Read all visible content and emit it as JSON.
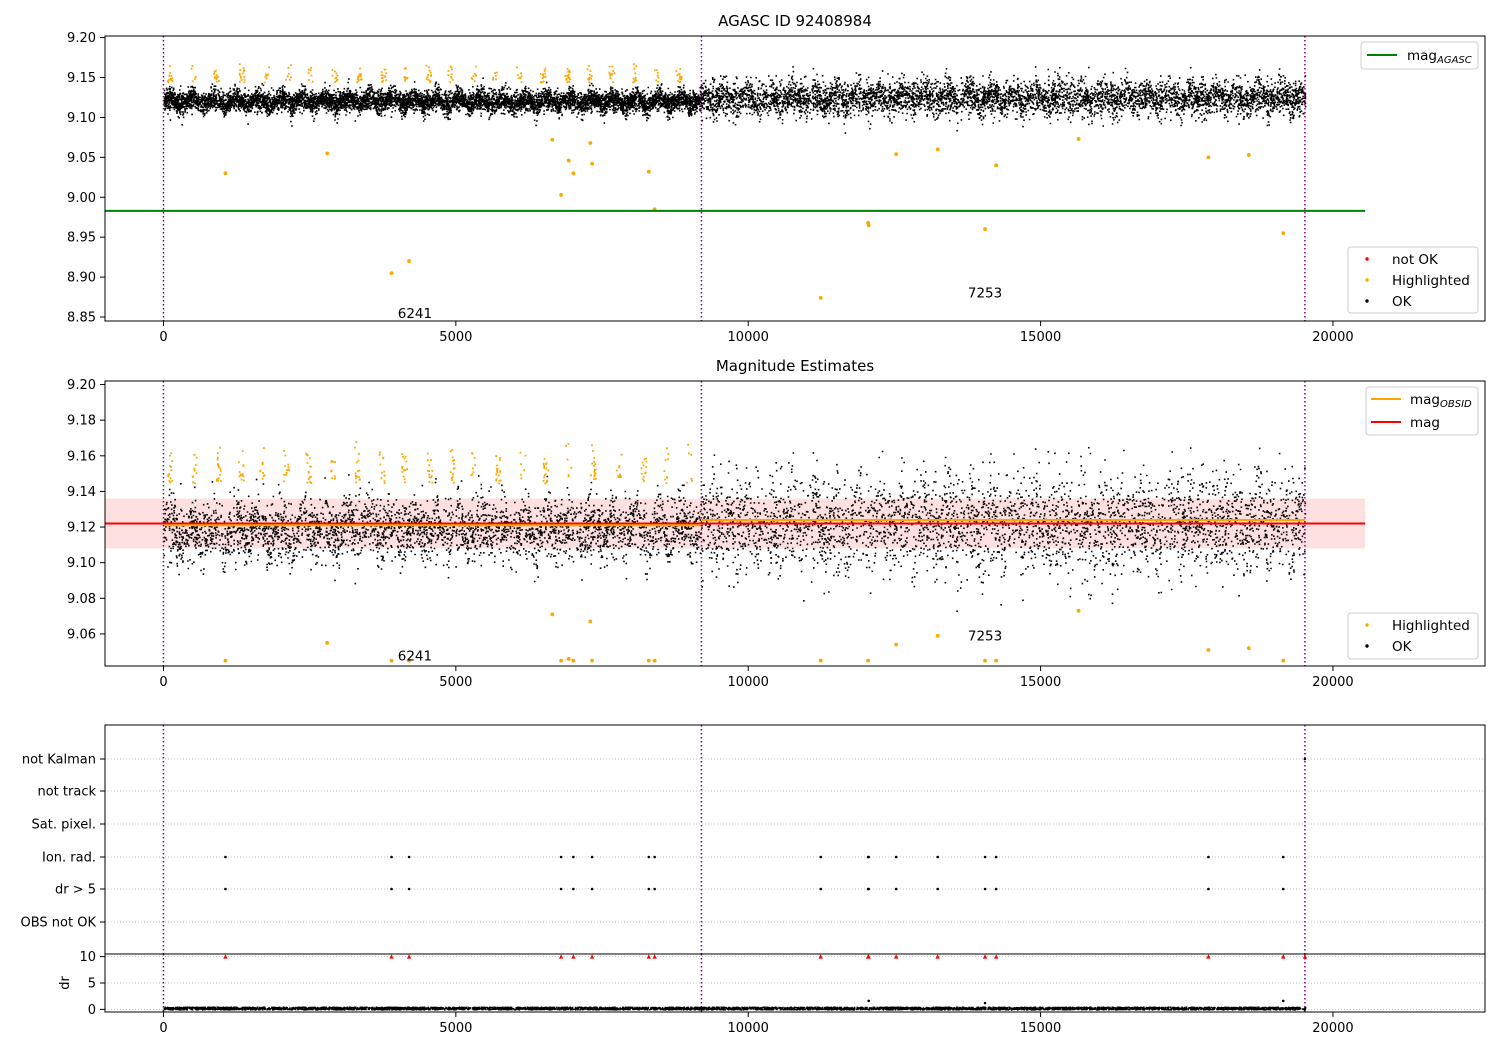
{
  "chart_data": [
    {
      "type": "scatter",
      "title": "AGASC ID 92408984",
      "xlabel": "",
      "ylabel": "",
      "xlim": [
        -1000,
        22600
      ],
      "ylim": [
        8.845,
        9.202
      ],
      "xticks": [
        0,
        5000,
        10000,
        15000,
        20000
      ],
      "xtick_labels": [
        "0",
        "5000",
        "10000",
        "15000",
        "20000"
      ],
      "yticks": [
        8.85,
        8.9,
        8.95,
        9.0,
        9.05,
        9.1,
        9.15,
        9.2
      ],
      "ytick_labels": [
        "8.85",
        "8.90",
        "8.95",
        "9.00",
        "9.05",
        "9.10",
        "9.15",
        "9.20"
      ],
      "obs_boundaries": [
        0,
        9200,
        19520
      ],
      "obs_annotations": [
        {
          "text": "6241",
          "x": 4300,
          "y": 8.855
        },
        {
          "text": "7253",
          "x": 14050,
          "y": 8.881
        }
      ],
      "lines": [
        {
          "name": "mag_AGASC",
          "label_main": "mag",
          "label_sub": "AGASC",
          "y": 8.983,
          "x": [
            -1000,
            20550
          ],
          "color": "#008000"
        }
      ],
      "series": [
        {
          "name": "not OK",
          "color": "#ff0000",
          "points": []
        },
        {
          "name": "Highlighted",
          "color": "#ffa500",
          "points": [
            [
              1060,
              9.03
            ],
            [
              2800,
              9.055
            ],
            [
              3900,
              8.905
            ],
            [
              4200,
              8.92
            ],
            [
              6650,
              9.072
            ],
            [
              6800,
              9.003
            ],
            [
              6930,
              9.046
            ],
            [
              7010,
              9.03
            ],
            [
              7300,
              9.068
            ],
            [
              7330,
              9.042
            ],
            [
              8300,
              9.032
            ],
            [
              8400,
              8.985
            ],
            [
              12050,
              8.968
            ],
            [
              12060,
              8.965
            ],
            [
              12530,
              9.054
            ],
            [
              13240,
              9.06
            ],
            [
              14050,
              8.96
            ],
            [
              14240,
              9.04
            ],
            [
              15650,
              9.073
            ],
            [
              11240,
              8.874
            ],
            [
              17870,
              9.05
            ],
            [
              18560,
              9.053
            ],
            [
              19150,
              8.955
            ]
          ]
        },
        {
          "name": "OK",
          "color": "#000000",
          "points": []
        }
      ],
      "ok_band": [
        {
          "x_start": 0,
          "x_end": 9200,
          "center": 9.121,
          "half_width": 0.011,
          "max_spike": 9.152
        },
        {
          "x_start": 9200,
          "x_end": 19520,
          "center": 9.125,
          "half_width": 0.018,
          "max_spike": 9.165
        }
      ],
      "highlight_spikes": {
        "y_min": 9.145,
        "y_max": 9.17
      },
      "legends": [
        {
          "position": "upper-right",
          "entries": [
            {
              "name": "mag",
              "sub": "AGASC",
              "kind": "line",
              "color": "#008000"
            }
          ]
        },
        {
          "position": "lower-right",
          "entries": [
            {
              "name": "not OK",
              "kind": "dot",
              "color": "#ff0000"
            },
            {
              "name": "Highlighted",
              "kind": "dot",
              "color": "#ffa500"
            },
            {
              "name": "OK",
              "kind": "dot",
              "color": "#000000"
            }
          ]
        }
      ]
    },
    {
      "type": "scatter",
      "title": "Magnitude Estimates",
      "xlabel": "",
      "ylabel": "",
      "xlim": [
        -1000,
        22600
      ],
      "ylim": [
        9.042,
        9.202
      ],
      "xticks": [
        0,
        5000,
        10000,
        15000,
        20000
      ],
      "xtick_labels": [
        "0",
        "5000",
        "10000",
        "15000",
        "20000"
      ],
      "yticks": [
        9.06,
        9.08,
        9.1,
        9.12,
        9.14,
        9.16,
        9.18,
        9.2
      ],
      "ytick_labels": [
        "9.06",
        "9.08",
        "9.10",
        "9.12",
        "9.14",
        "9.16",
        "9.18",
        "9.20"
      ],
      "obs_boundaries": [
        0,
        9200,
        19520
      ],
      "obs_annotations": [
        {
          "text": "6241",
          "x": 4300,
          "y": 9.048
        },
        {
          "text": "7253",
          "x": 14050,
          "y": 9.059
        }
      ],
      "mag_band": {
        "y_low": 9.108,
        "y_high": 9.136,
        "x": [
          -1000,
          20550
        ],
        "color": "#ff0000",
        "opacity": 0.12
      },
      "lines": [
        {
          "name": "mag",
          "y": 9.122,
          "x": [
            -1000,
            20550
          ],
          "color": "#ff0000"
        },
        {
          "name": "mag_OBSID (6241)",
          "y": 9.121,
          "x": [
            0,
            9200
          ],
          "color": "#ffa500"
        },
        {
          "name": "mag_OBSID (7253)",
          "y": 9.124,
          "x": [
            9200,
            19520
          ],
          "color": "#ffa500"
        }
      ],
      "series": [
        {
          "name": "Highlighted",
          "color": "#ffa500",
          "points": [
            [
              1060,
              9.045
            ],
            [
              2800,
              9.055
            ],
            [
              3900,
              9.045
            ],
            [
              4200,
              9.045
            ],
            [
              6650,
              9.071
            ],
            [
              6800,
              9.045
            ],
            [
              6930,
              9.046
            ],
            [
              7010,
              9.045
            ],
            [
              7300,
              9.067
            ],
            [
              7330,
              9.045
            ],
            [
              8300,
              9.045
            ],
            [
              8400,
              9.045
            ],
            [
              11240,
              9.045
            ],
            [
              12050,
              9.045
            ],
            [
              12530,
              9.054
            ],
            [
              13240,
              9.059
            ],
            [
              14050,
              9.045
            ],
            [
              14240,
              9.045
            ],
            [
              15650,
              9.073
            ],
            [
              17870,
              9.051
            ],
            [
              18560,
              9.052
            ],
            [
              19150,
              9.045
            ]
          ]
        },
        {
          "name": "OK",
          "color": "#000000",
          "points": []
        }
      ],
      "ok_band": [
        {
          "x_start": 0,
          "x_end": 9200,
          "center": 9.119,
          "half_width": 0.014,
          "max_spike": 9.15
        },
        {
          "x_start": 9200,
          "x_end": 19520,
          "center": 9.122,
          "half_width": 0.022,
          "max_spike": 9.165
        }
      ],
      "highlight_spikes": {
        "y_min": 9.145,
        "y_max": 9.17
      },
      "legends": [
        {
          "position": "upper-right",
          "entries": [
            {
              "name": "mag",
              "sub": "OBSID",
              "kind": "line",
              "color": "#ffa500"
            },
            {
              "name": "mag",
              "kind": "line",
              "color": "#ff0000"
            }
          ]
        },
        {
          "position": "lower-right",
          "entries": [
            {
              "name": "Highlighted",
              "kind": "dot",
              "color": "#ffa500"
            },
            {
              "name": "OK",
              "kind": "dot",
              "color": "#000000"
            }
          ]
        }
      ]
    },
    {
      "type": "scatter",
      "title": "",
      "xlim": [
        -1000,
        22600
      ],
      "categories": [
        "OBS not OK",
        "dr > 5",
        "Ion. rad.",
        "Sat. pixel.",
        "not track",
        "not Kalman"
      ],
      "obs_boundaries": [
        0,
        9200,
        19520
      ],
      "flag_events": {
        "Ion. rad.": [
          1060,
          3900,
          4200,
          6800,
          7010,
          7330,
          8300,
          8400,
          11240,
          12050,
          12060,
          12530,
          13240,
          14050,
          14240,
          17870,
          19150
        ],
        "dr > 5": [
          1060,
          3900,
          4200,
          6800,
          7010,
          7330,
          8300,
          8400,
          11240,
          12050,
          12060,
          12530,
          13240,
          14050,
          14240,
          17870,
          19150
        ],
        "not Kalman": [
          19520
        ]
      }
    },
    {
      "type": "scatter",
      "title": "",
      "ylabel": "dr",
      "xlim": [
        -1000,
        22600
      ],
      "ylim": [
        -0.5,
        10.5
      ],
      "xticks": [
        0,
        5000,
        10000,
        15000,
        20000
      ],
      "xtick_labels": [
        "0",
        "5000",
        "10000",
        "15000",
        "20000"
      ],
      "yticks": [
        0,
        5,
        10
      ],
      "ytick_labels": [
        "0",
        "5",
        "10"
      ],
      "obs_boundaries": [
        0,
        9200,
        19520
      ],
      "dr_typical": [
        0.05,
        0.55
      ],
      "capped_markers": {
        "y": 10,
        "color": "#ff0000",
        "x": [
          1060,
          3900,
          4200,
          6800,
          7010,
          7330,
          8300,
          8400,
          11240,
          12050,
          12060,
          12530,
          13240,
          14050,
          14240,
          17870,
          19150,
          19520
        ]
      },
      "outliers": [
        [
          12060,
          1.6
        ],
        [
          19150,
          1.6
        ],
        [
          14050,
          1.2
        ]
      ]
    }
  ]
}
